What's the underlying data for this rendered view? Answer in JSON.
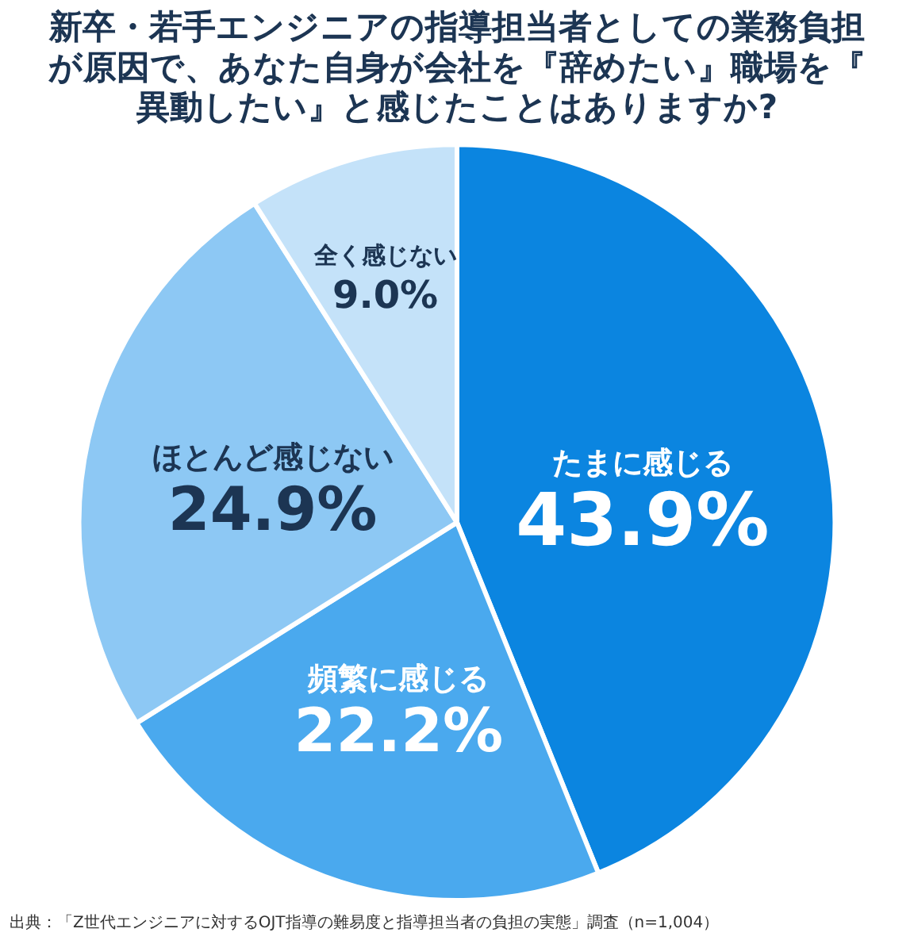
{
  "chart_data": {
    "type": "pie",
    "title": "新卒・若手エンジニアの指導担当者としての業務負担が原因で、あなた自身が会社を『辞めたい』職場を『異動したい』と感じたことはありますか?",
    "categories": [
      "たまに感じる",
      "頻繁に感じる",
      "ほとんど感じない",
      "全く感じない"
    ],
    "values": [
      43.9,
      22.2,
      24.9,
      9.0
    ],
    "value_labels": [
      "43.9%",
      "22.2%",
      "24.9%",
      "9.0%"
    ],
    "colors": [
      "#0b85e0",
      "#4aa9ee",
      "#8dc8f4",
      "#c4e2f9"
    ],
    "annotations": [
      "出典：「Z世代エンジニアに対するOJT指導の難易度と指導担当者の負担の実態」調査（n=1,004）"
    ]
  }
}
